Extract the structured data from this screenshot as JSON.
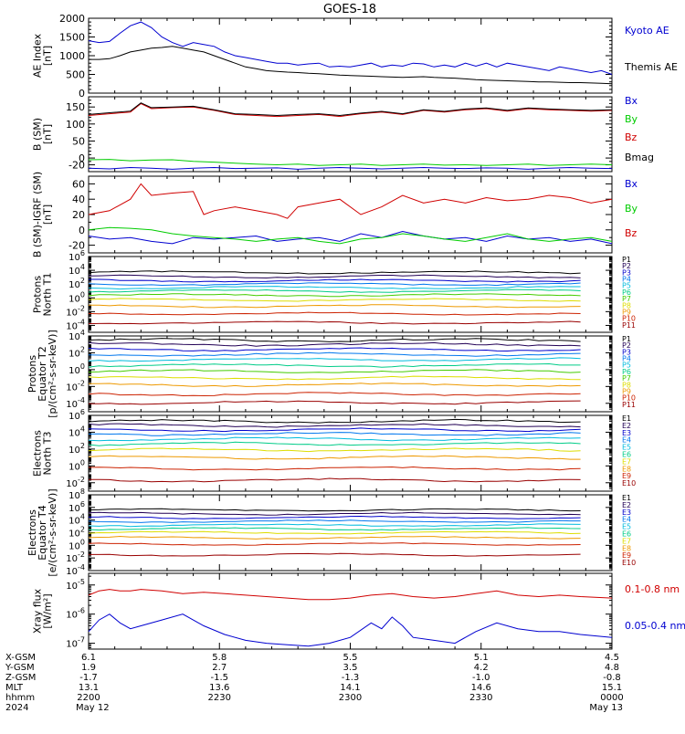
{
  "title": "GOES-18",
  "colors": {
    "black": "#000000",
    "blue": "#0000d0",
    "green": "#00cc00",
    "red": "#d00000",
    "protons": [
      "#000000",
      "#220055",
      "#0000cc",
      "#0077ee",
      "#00bbdd",
      "#00cc88",
      "#44cc00",
      "#dddd00",
      "#ee9900",
      "#cc2200",
      "#990000"
    ],
    "electrons": [
      "#000000",
      "#220055",
      "#0000cc",
      "#0077ee",
      "#00bbdd",
      "#00cc88",
      "#dddd00",
      "#ee9900",
      "#cc2200",
      "#990000"
    ]
  },
  "chart_data": [
    {
      "type": "line",
      "name": "ae-index",
      "ylabel": [
        "AE Index",
        "[nT]"
      ],
      "ylim": [
        0,
        2000
      ],
      "yscale": "linear",
      "yticks": [
        0,
        500,
        1000,
        1500,
        2000
      ],
      "yminor": [
        100,
        200,
        300,
        400,
        600,
        700,
        800,
        900,
        1100,
        1200,
        1300,
        1400,
        1600,
        1700,
        1800,
        1900
      ],
      "series": [
        {
          "name": "Kyoto AE",
          "color": "#0000d0",
          "x": [
            0,
            2,
            4,
            6,
            8,
            10,
            12,
            14,
            16,
            18,
            20,
            22,
            24,
            26,
            28,
            30,
            32,
            34,
            36,
            38,
            40,
            42,
            44,
            46,
            48,
            50,
            52,
            54,
            56,
            58,
            60,
            62,
            64,
            66,
            68,
            70,
            72,
            74,
            76,
            78,
            80,
            82,
            84,
            86,
            88,
            90,
            92,
            94,
            96,
            98,
            100
          ],
          "y": [
            1400,
            1350,
            1380,
            1600,
            1800,
            1900,
            1750,
            1500,
            1350,
            1250,
            1350,
            1300,
            1250,
            1100,
            1000,
            950,
            900,
            850,
            800,
            800,
            750,
            780,
            800,
            700,
            720,
            700,
            750,
            800,
            700,
            750,
            720,
            800,
            780,
            700,
            750,
            700,
            800,
            720,
            800,
            700,
            800,
            750,
            700,
            650,
            600,
            700,
            650,
            600,
            550,
            600,
            500
          ]
        },
        {
          "name": "Themis AE",
          "color": "#000000",
          "x": [
            0,
            2,
            4,
            6,
            8,
            10,
            12,
            14,
            16,
            18,
            20,
            22,
            24,
            26,
            28,
            30,
            32,
            34,
            36,
            38,
            40,
            42,
            44,
            46,
            48,
            50,
            52,
            54,
            56,
            58,
            60,
            62,
            64,
            66,
            68,
            70,
            72,
            74,
            76,
            78,
            80,
            82,
            84,
            86,
            88,
            90,
            92,
            94,
            96,
            98,
            100
          ],
          "y": [
            900,
            900,
            920,
            1000,
            1100,
            1150,
            1200,
            1220,
            1250,
            1200,
            1150,
            1100,
            1000,
            900,
            800,
            700,
            650,
            600,
            580,
            560,
            550,
            530,
            520,
            500,
            480,
            470,
            460,
            450,
            440,
            430,
            420,
            430,
            440,
            420,
            410,
            400,
            380,
            360,
            350,
            340,
            330,
            320,
            310,
            300,
            300,
            290,
            280,
            280,
            270,
            260,
            250
          ]
        }
      ]
    },
    {
      "type": "line",
      "name": "b-sm",
      "ylabel": [
        "B (SM)",
        "[nT]"
      ],
      "ylim": [
        -40,
        180
      ],
      "yscale": "linear",
      "yticks": [
        0,
        50,
        100,
        150
      ],
      "extra_tick_labels": [
        {
          "v": -20,
          "t": "-20"
        }
      ],
      "yminor": [
        -30,
        -10,
        10,
        20,
        30,
        40,
        60,
        70,
        80,
        90,
        110,
        120,
        130,
        140,
        160,
        170
      ],
      "series": [
        {
          "name": "Bx",
          "color": "#0000d0",
          "x": [
            0,
            4,
            8,
            12,
            16,
            20,
            24,
            28,
            32,
            36,
            40,
            44,
            48,
            52,
            56,
            60,
            64,
            68,
            72,
            76,
            80,
            84,
            88,
            92,
            96,
            100
          ],
          "y": [
            -30,
            -32,
            -28,
            -30,
            -33,
            -30,
            -28,
            -31,
            -30,
            -29,
            -33,
            -30,
            -28,
            -30,
            -32,
            -30,
            -28,
            -30,
            -31,
            -29,
            -30,
            -33,
            -30,
            -28,
            -30,
            -31
          ]
        },
        {
          "name": "By",
          "color": "#00cc00",
          "x": [
            0,
            4,
            8,
            12,
            16,
            20,
            24,
            28,
            32,
            36,
            40,
            44,
            48,
            52,
            56,
            60,
            64,
            68,
            72,
            76,
            80,
            84,
            88,
            92,
            96,
            100
          ],
          "y": [
            -5,
            -4,
            -8,
            -6,
            -5,
            -10,
            -12,
            -15,
            -18,
            -20,
            -18,
            -22,
            -20,
            -18,
            -22,
            -20,
            -18,
            -21,
            -20,
            -22,
            -20,
            -18,
            -22,
            -20,
            -18,
            -20
          ]
        },
        {
          "name": "Bz",
          "color": "#d00000",
          "x": [
            0,
            4,
            8,
            10,
            12,
            16,
            20,
            24,
            28,
            32,
            36,
            40,
            44,
            48,
            52,
            56,
            60,
            64,
            68,
            72,
            76,
            80,
            84,
            88,
            92,
            96,
            100
          ],
          "y": [
            125,
            130,
            135,
            160,
            145,
            148,
            150,
            140,
            128,
            125,
            122,
            125,
            128,
            122,
            130,
            135,
            128,
            140,
            135,
            142,
            145,
            138,
            145,
            142,
            140,
            138,
            140
          ]
        },
        {
          "name": "Bmag",
          "color": "#000000",
          "x": [
            0,
            4,
            8,
            10,
            12,
            16,
            20,
            24,
            28,
            32,
            36,
            40,
            44,
            48,
            52,
            56,
            60,
            64,
            68,
            72,
            76,
            80,
            84,
            88,
            92,
            96,
            100
          ],
          "y": [
            128,
            133,
            138,
            162,
            148,
            150,
            152,
            142,
            130,
            128,
            125,
            128,
            130,
            125,
            132,
            137,
            130,
            142,
            137,
            144,
            147,
            140,
            147,
            144,
            142,
            140,
            142
          ]
        }
      ]
    },
    {
      "type": "line",
      "name": "b-sm-igrf",
      "ylabel": [
        "B (SM)-IGRF (SM)",
        "[nT]"
      ],
      "ylim": [
        -30,
        70
      ],
      "yscale": "linear",
      "yticks": [
        -20,
        0,
        20,
        40,
        60
      ],
      "yminor": [
        -30,
        -10,
        10,
        30,
        50,
        70
      ],
      "series": [
        {
          "name": "Bx",
          "color": "#0000d0",
          "x": [
            0,
            4,
            8,
            12,
            16,
            20,
            24,
            28,
            32,
            36,
            40,
            44,
            48,
            52,
            56,
            60,
            64,
            68,
            72,
            76,
            80,
            84,
            88,
            92,
            96,
            100
          ],
          "y": [
            -8,
            -12,
            -10,
            -15,
            -18,
            -10,
            -12,
            -10,
            -8,
            -15,
            -12,
            -10,
            -15,
            -5,
            -10,
            -2,
            -8,
            -12,
            -10,
            -15,
            -8,
            -12,
            -10,
            -15,
            -12,
            -18
          ]
        },
        {
          "name": "By",
          "color": "#00cc00",
          "x": [
            0,
            4,
            8,
            12,
            16,
            20,
            24,
            28,
            32,
            36,
            40,
            44,
            48,
            52,
            56,
            60,
            64,
            68,
            72,
            76,
            80,
            84,
            88,
            92,
            96,
            100
          ],
          "y": [
            0,
            3,
            2,
            0,
            -5,
            -8,
            -10,
            -12,
            -15,
            -12,
            -10,
            -15,
            -18,
            -12,
            -10,
            -5,
            -8,
            -12,
            -15,
            -10,
            -5,
            -12,
            -15,
            -12,
            -10,
            -15
          ]
        },
        {
          "name": "Bz",
          "color": "#d00000",
          "x": [
            0,
            4,
            8,
            10,
            12,
            16,
            20,
            22,
            24,
            28,
            32,
            36,
            38,
            40,
            44,
            48,
            52,
            56,
            60,
            64,
            68,
            72,
            76,
            80,
            84,
            88,
            92,
            96,
            100
          ],
          "y": [
            20,
            25,
            40,
            60,
            45,
            48,
            50,
            20,
            25,
            30,
            25,
            20,
            15,
            30,
            35,
            40,
            20,
            30,
            45,
            35,
            40,
            35,
            42,
            38,
            40,
            45,
            42,
            35,
            40
          ]
        }
      ]
    },
    {
      "type": "line",
      "name": "protons-north",
      "ylabel": [
        "Protons",
        "North T1"
      ],
      "yscale": "log",
      "ylim_exp": [
        -5,
        6
      ],
      "ytick_exps": [
        -4,
        -2,
        0,
        2,
        4,
        6
      ],
      "channel_labels": [
        "P1",
        "P2",
        "P3",
        "P4",
        "P5",
        "P6",
        "P7",
        "P8",
        "P9",
        "P10",
        "P11"
      ],
      "series_levels": [
        3.7,
        3.1,
        2.5,
        2.0,
        1.5,
        1.0,
        0.4,
        -0.3,
        -1.2,
        -2.3,
        -3.6
      ],
      "x_end": 95
    },
    {
      "type": "line",
      "name": "protons-equator",
      "ylabel": [
        "Protons",
        "Equator T2",
        "[p/(cm²-s-sr-keV)]"
      ],
      "yscale": "log",
      "ylim_exp": [
        -5,
        4
      ],
      "ytick_exps": [
        -4,
        -2,
        0,
        2,
        4
      ],
      "channel_labels": [
        "P1",
        "P2",
        "P3",
        "P4",
        "P5",
        "P6",
        "P7",
        "P8",
        "P9",
        "P10",
        "P11"
      ],
      "series_levels": [
        3.5,
        3.0,
        2.4,
        1.8,
        1.2,
        0.5,
        -0.2,
        -1.0,
        -1.8,
        -2.9,
        -3.9
      ],
      "x_end": 95
    },
    {
      "type": "line",
      "name": "electrons-north",
      "ylabel": [
        "Electrons",
        "North T3"
      ],
      "yscale": "log",
      "ylim_exp": [
        -3,
        6
      ],
      "ytick_exps": [
        -2,
        0,
        2,
        4,
        6
      ],
      "channel_labels": [
        "E1",
        "E2",
        "E3",
        "E4",
        "E5",
        "E6",
        "E7",
        "E8",
        "E9",
        "E10"
      ],
      "series_levels": [
        5.3,
        4.8,
        4.3,
        3.8,
        3.2,
        2.6,
        1.9,
        1.0,
        -0.3,
        -1.7
      ],
      "x_end": 95
    },
    {
      "type": "line",
      "name": "electrons-equator",
      "ylabel": [
        "Electrons",
        "Equator T4",
        "[e/(cm²-s-sr-keV)]"
      ],
      "yscale": "log",
      "ylim_exp": [
        -4,
        8
      ],
      "ytick_exps": [
        -4,
        -2,
        0,
        2,
        4,
        6,
        8
      ],
      "channel_labels": [
        "E1",
        "E2",
        "E3",
        "E4",
        "E5",
        "E6",
        "E7",
        "E8",
        "E9",
        "E10"
      ],
      "series_levels": [
        5.6,
        5.0,
        4.4,
        3.8,
        3.2,
        2.6,
        2.0,
        1.2,
        0.2,
        -1.5
      ],
      "x_end": 95
    },
    {
      "type": "line",
      "name": "xray-flux",
      "ylabel": [
        "Xray flux",
        "[W/m²]"
      ],
      "yscale": "log",
      "ylim_exp": [
        -7.2,
        -4.6
      ],
      "ytick_exps": [
        -7,
        -6,
        -5
      ],
      "series": [
        {
          "name": "0.1-0.8 nm",
          "color": "#d00000",
          "x": [
            0,
            2,
            4,
            6,
            8,
            10,
            14,
            18,
            22,
            26,
            30,
            34,
            38,
            42,
            46,
            50,
            54,
            58,
            62,
            66,
            70,
            74,
            78,
            82,
            86,
            90,
            94,
            100
          ],
          "y": [
            -5.35,
            -5.2,
            -5.15,
            -5.2,
            -5.2,
            -5.15,
            -5.2,
            -5.3,
            -5.25,
            -5.3,
            -5.35,
            -5.4,
            -5.45,
            -5.5,
            -5.5,
            -5.45,
            -5.35,
            -5.3,
            -5.4,
            -5.45,
            -5.4,
            -5.3,
            -5.2,
            -5.35,
            -5.4,
            -5.35,
            -5.4,
            -5.45
          ]
        },
        {
          "name": "0.05-0.4 nm",
          "color": "#0000d0",
          "x": [
            0,
            2,
            4,
            6,
            8,
            10,
            14,
            18,
            22,
            26,
            30,
            34,
            38,
            42,
            46,
            50,
            54,
            56,
            58,
            60,
            62,
            66,
            70,
            74,
            78,
            82,
            86,
            90,
            94,
            100
          ],
          "y": [
            -6.6,
            -6.2,
            -6.0,
            -6.3,
            -6.5,
            -6.4,
            -6.2,
            -6.0,
            -6.4,
            -6.7,
            -6.9,
            -7.0,
            -7.05,
            -7.1,
            -7.0,
            -6.8,
            -6.3,
            -6.5,
            -6.1,
            -6.4,
            -6.8,
            -6.9,
            -7.0,
            -6.6,
            -6.3,
            -6.5,
            -6.6,
            -6.6,
            -6.7,
            -6.8
          ]
        }
      ]
    }
  ],
  "x_axis": {
    "row_labels": [
      "X-GSM",
      "Y-GSM",
      "Z-GSM",
      "MLT",
      "hhmm",
      "2024"
    ],
    "ticks": [
      {
        "pos": 0,
        "vals": [
          "6.1",
          "1.9",
          "-1.7",
          "13.1",
          "2200",
          "May 12"
        ]
      },
      {
        "pos": 25,
        "vals": [
          "5.8",
          "2.7",
          "-1.5",
          "13.6",
          "2230",
          ""
        ]
      },
      {
        "pos": 50,
        "vals": [
          "5.5",
          "3.5",
          "-1.3",
          "14.1",
          "2300",
          ""
        ]
      },
      {
        "pos": 75,
        "vals": [
          "5.1",
          "4.2",
          "-1.0",
          "14.6",
          "2330",
          ""
        ]
      },
      {
        "pos": 100,
        "vals": [
          "4.5",
          "4.8",
          "-0.8",
          "15.1",
          "0000",
          "May 13"
        ]
      }
    ]
  }
}
